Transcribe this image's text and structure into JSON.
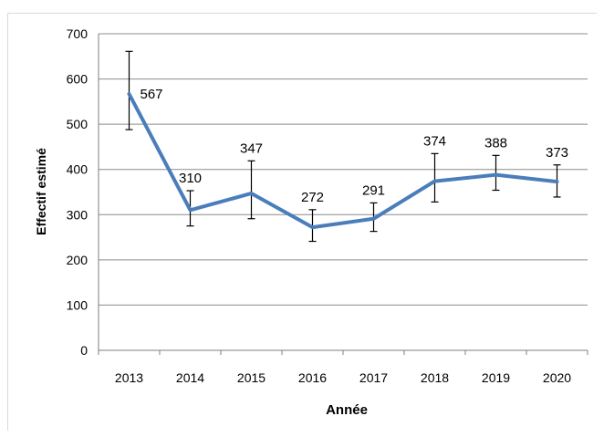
{
  "chart_data": {
    "type": "line",
    "title": "",
    "xlabel": "Année",
    "ylabel": "Effectif estimé",
    "categories": [
      "2013",
      "2014",
      "2015",
      "2016",
      "2017",
      "2018",
      "2019",
      "2020"
    ],
    "series": [
      {
        "values": [
          567,
          310,
          347,
          272,
          291,
          374,
          388,
          373
        ],
        "error_low": [
          488,
          275,
          291,
          241,
          263,
          328,
          354,
          339
        ],
        "error_high": [
          661,
          353,
          419,
          311,
          326,
          435,
          431,
          410
        ],
        "color": "#4a7ebb"
      }
    ],
    "data_labels": [
      "567",
      "310",
      "347",
      "272",
      "291",
      "374",
      "388",
      "373"
    ],
    "ylim": [
      0,
      700
    ],
    "yticks": [
      "0",
      "100",
      "200",
      "300",
      "400",
      "500",
      "600",
      "700"
    ],
    "grid": true,
    "legend": "none",
    "gridline_color": "#8c8c8c"
  }
}
